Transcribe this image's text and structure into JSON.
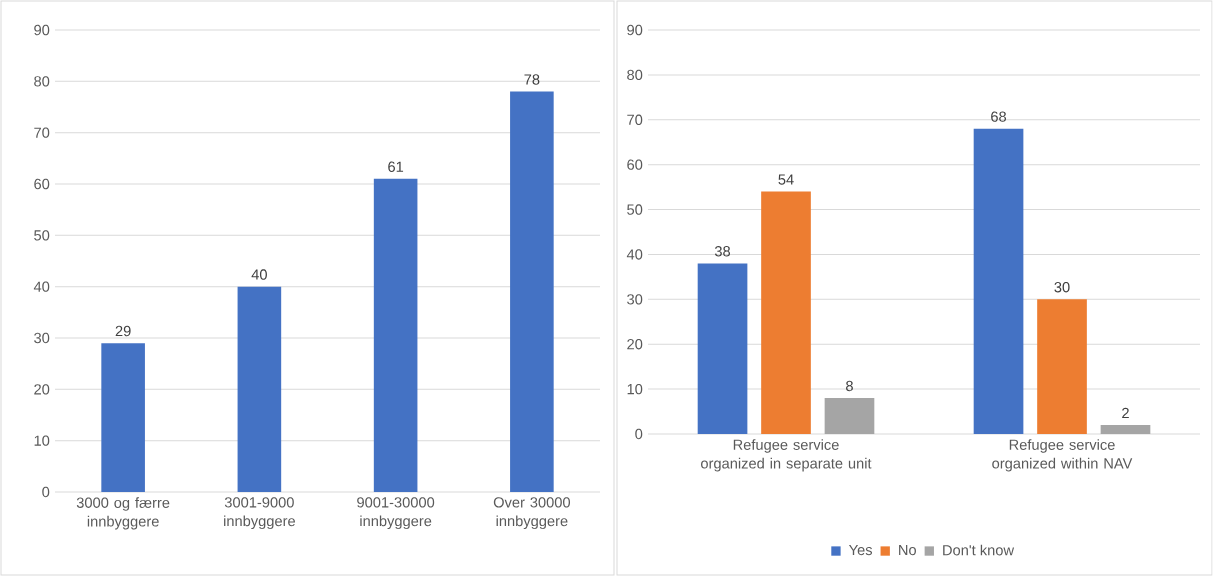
{
  "chart_data": [
    {
      "type": "bar",
      "categories": [
        "3000 og færre innbyggere",
        "3001-9000 innbyggere",
        "9001-30000 innbyggere",
        "Over 30000 innbyggere"
      ],
      "values": [
        29,
        40,
        61,
        78
      ],
      "color": "#4472c4",
      "ylim": [
        0,
        90
      ],
      "yticks": [
        0,
        10,
        20,
        30,
        40,
        50,
        60,
        70,
        80,
        90
      ],
      "grid": "y",
      "data_labels": true
    },
    {
      "type": "bar",
      "categories": [
        "Refugee service organized in separate unit",
        "Refugee service organized within NAV"
      ],
      "series": [
        {
          "name": "Yes",
          "color": "#4472c4",
          "values": [
            38,
            68
          ]
        },
        {
          "name": "No",
          "color": "#ed7d31",
          "values": [
            54,
            30
          ]
        },
        {
          "name": "Don't know",
          "color": "#a5a5a5",
          "values": [
            8,
            2
          ]
        }
      ],
      "ylim": [
        0,
        90
      ],
      "yticks": [
        0,
        10,
        20,
        30,
        40,
        50,
        60,
        70,
        80,
        90
      ],
      "grid": "y",
      "data_labels": true,
      "legend": "bottom"
    }
  ]
}
